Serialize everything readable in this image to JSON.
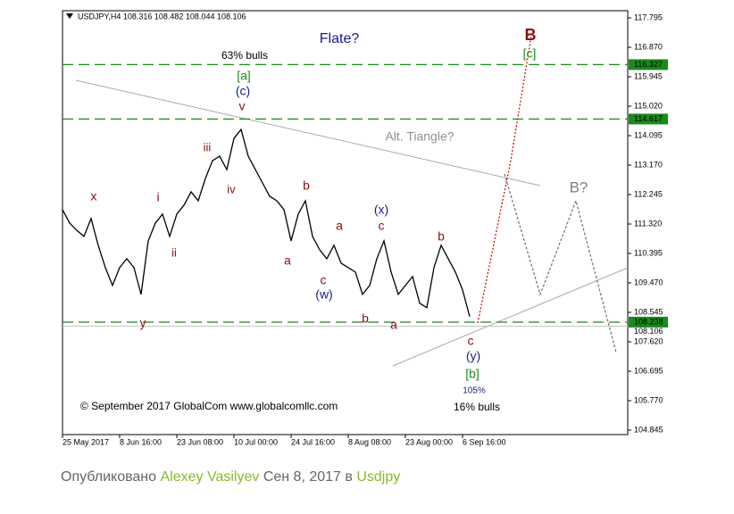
{
  "chart_data": {
    "type": "line",
    "title": "USDJPY,H4  108.316 108.482 108.044 108.106",
    "categories": [
      "25 May 2017",
      null,
      null,
      null,
      null,
      null,
      null,
      null,
      "8 Jun 16:00",
      null,
      null,
      null,
      null,
      null,
      null,
      null,
      "23 Jun 08:00",
      null,
      null,
      null,
      null,
      null,
      null,
      null,
      "10 Jul 00:00",
      null,
      null,
      null,
      null,
      null,
      null,
      null,
      "24 Jul 16:00",
      null,
      null,
      null,
      null,
      null,
      null,
      null,
      "8 Aug 08:00",
      null,
      null,
      null,
      null,
      null,
      null,
      null,
      "23 Aug 00:00",
      null,
      null,
      null,
      null,
      null,
      null,
      null,
      "6 Sep 16:00",
      null,
      null,
      null,
      null,
      null,
      null,
      null,
      null,
      null,
      null,
      null,
      null,
      null,
      null,
      null,
      null,
      null,
      null,
      null,
      null,
      null,
      null,
      null
    ],
    "values": [
      111.77,
      111.35,
      111.12,
      110.93,
      111.49,
      110.65,
      109.95,
      109.39,
      109.95,
      110.23,
      109.95,
      109.11,
      110.79,
      111.35,
      111.63,
      110.93,
      111.63,
      111.91,
      112.33,
      112.05,
      112.75,
      113.31,
      113.45,
      113.03,
      114.01,
      114.29,
      113.45,
      113.03,
      112.61,
      112.19,
      112.05,
      111.77,
      110.79,
      111.63,
      112.05,
      110.93,
      110.51,
      110.23,
      110.65,
      110.09,
      109.95,
      109.81,
      109.11,
      109.39,
      110.23,
      110.79,
      109.81,
      109.11,
      109.39,
      109.67,
      108.83,
      108.69,
      109.95,
      110.65,
      110.23,
      109.81,
      109.25,
      108.41,
      null,
      null,
      null,
      null,
      null,
      null,
      null,
      null,
      null,
      null,
      null,
      null,
      null,
      null,
      null,
      null,
      null,
      null,
      null,
      null,
      null,
      null
    ],
    "color": "#000000",
    "ylim": [
      104.705,
      118.02
    ],
    "yticks": [
      117.795,
      {
        "value": 116.87,
        "label": "116.870"
      },
      115.945,
      {
        "value": 115.02,
        "label": "115.020"
      },
      114.095,
      {
        "value": 113.17,
        "label": "113.170"
      },
      112.245,
      {
        "value": 111.32,
        "label": "111.320"
      },
      110.395,
      {
        "value": 109.47,
        "label": "109.470"
      },
      108.545,
      {
        "value": 107.62,
        "label": "107.620"
      },
      106.695,
      {
        "value": 105.77,
        "label": "105.770"
      },
      104.845
    ],
    "levels": [
      116.327,
      114.617,
      108.238
    ],
    "level_color": "#1a8a1a",
    "price_line": 108.106,
    "annotations": [
      {
        "text": "Flate?",
        "color": "#1a1a8c"
      },
      {
        "text": "B",
        "color": "#8b1010"
      },
      {
        "text": "[c]",
        "color": "#1a8a1a"
      },
      {
        "text": "63% bulls",
        "color": "#000000"
      },
      {
        "text": "[a]",
        "color": "#1a8a1a"
      },
      {
        "text": "(c)",
        "color": "#1a1a8c"
      },
      {
        "text": "v",
        "color": "#8b1010"
      },
      {
        "text": "Alt. Tiangle?",
        "color": "#909090"
      },
      {
        "text": "iii",
        "color": "#8b1010"
      },
      {
        "text": "iv",
        "color": "#8b1010"
      },
      {
        "text": "x",
        "color": "#8b1010"
      },
      {
        "text": "i",
        "color": "#8b1010"
      },
      {
        "text": "b",
        "color": "#8b1010"
      },
      {
        "text": "B?",
        "color": "#808080"
      },
      {
        "text": "(x)",
        "color": "#1a1a8c"
      },
      {
        "text": "c",
        "color": "#8b1010"
      },
      {
        "text": "a",
        "color": "#8b1010"
      },
      {
        "text": "b",
        "color": "#8b1010"
      },
      {
        "text": "ii",
        "color": "#8b1010"
      },
      {
        "text": "a",
        "color": "#8b1010"
      },
      {
        "text": "c",
        "color": "#8b1010"
      },
      {
        "text": "(w)",
        "color": "#1a1a8c"
      },
      {
        "text": "b",
        "color": "#8b1010"
      },
      {
        "text": "a",
        "color": "#8b1010"
      },
      {
        "text": "y",
        "color": "#8b1010"
      },
      {
        "text": "c",
        "color": "#8b1010"
      },
      {
        "text": "(y)",
        "color": "#1a1a8c"
      },
      {
        "text": "[b]",
        "color": "#1a8a1a"
      },
      {
        "text": "105%",
        "color": "#1a1a8c"
      },
      {
        "text": "16% bulls",
        "color": "#000000"
      },
      {
        "text": "© September 2017 GlobalCom www.globalcomllc.com",
        "color": "#000000"
      }
    ]
  },
  "footer": {
    "prefix": "Опубликовано",
    "author": "Alexey Vasilyev",
    "date": "Сен 8, 2017",
    "in": "в",
    "tag": "Usdjpy"
  }
}
